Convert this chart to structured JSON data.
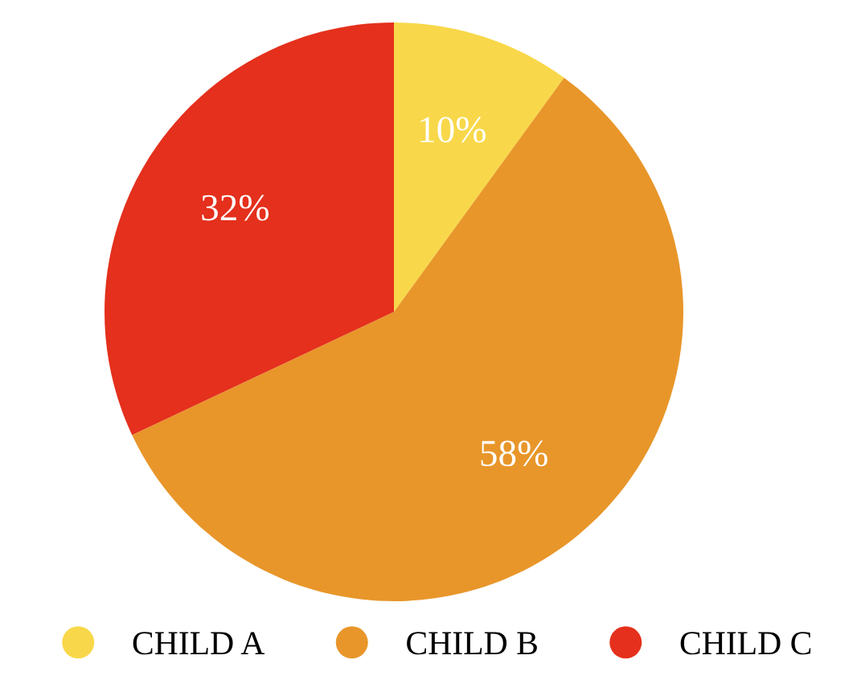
{
  "chart_data": {
    "type": "pie",
    "categories": [
      "CHILD A",
      "CHILD B",
      "CHILD C"
    ],
    "values": [
      10,
      58,
      32
    ],
    "colors": [
      "#f8d84a",
      "#e8962a",
      "#e4301c"
    ],
    "value_labels": [
      "10%",
      "58%",
      "32%"
    ],
    "legend": "bottom"
  }
}
